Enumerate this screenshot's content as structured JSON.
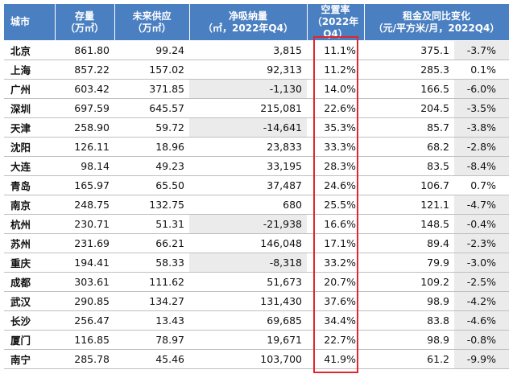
{
  "headers": {
    "city": "城市",
    "stock": [
      "存量",
      "（万㎡）"
    ],
    "supply": [
      "未来供应",
      "（万㎡）"
    ],
    "absorption": [
      "净吸纳量",
      "（㎡，2022年Q4）"
    ],
    "vacancy": [
      "空置率",
      "（2022年Q4）"
    ],
    "rent": [
      "租金及同比变化",
      "（元/平方米/月，2022Q4）"
    ]
  },
  "rows": [
    {
      "city": "北京",
      "stock": "861.80",
      "supply": "99.24",
      "absorption": "3,815",
      "vacancy": "11.1%",
      "rent": "375.1",
      "yoy": "-3.7%"
    },
    {
      "city": "上海",
      "stock": "857.22",
      "supply": "157.02",
      "absorption": "92,313",
      "vacancy": "11.2%",
      "rent": "285.3",
      "yoy": "0.1%"
    },
    {
      "city": "广州",
      "stock": "603.42",
      "supply": "371.85",
      "absorption": "-1,130",
      "vacancy": "14.0%",
      "rent": "166.5",
      "yoy": "-6.0%"
    },
    {
      "city": "深圳",
      "stock": "697.59",
      "supply": "645.57",
      "absorption": "215,081",
      "vacancy": "22.6%",
      "rent": "204.5",
      "yoy": "-3.5%"
    },
    {
      "city": "天津",
      "stock": "258.90",
      "supply": "59.72",
      "absorption": "-14,641",
      "vacancy": "35.3%",
      "rent": "85.7",
      "yoy": "-3.8%"
    },
    {
      "city": "沈阳",
      "stock": "126.11",
      "supply": "18.96",
      "absorption": "23,833",
      "vacancy": "33.3%",
      "rent": "68.2",
      "yoy": "-2.8%"
    },
    {
      "city": "大连",
      "stock": "98.14",
      "supply": "49.23",
      "absorption": "33,195",
      "vacancy": "28.3%",
      "rent": "83.5",
      "yoy": "-8.4%"
    },
    {
      "city": "青岛",
      "stock": "165.97",
      "supply": "65.50",
      "absorption": "37,487",
      "vacancy": "24.6%",
      "rent": "106.7",
      "yoy": "0.7%"
    },
    {
      "city": "南京",
      "stock": "248.75",
      "supply": "132.75",
      "absorption": "680",
      "vacancy": "25.5%",
      "rent": "121.1",
      "yoy": "-4.7%"
    },
    {
      "city": "杭州",
      "stock": "230.71",
      "supply": "51.31",
      "absorption": "-21,938",
      "vacancy": "16.6%",
      "rent": "148.5",
      "yoy": "-0.4%"
    },
    {
      "city": "苏州",
      "stock": "231.69",
      "supply": "66.21",
      "absorption": "146,048",
      "vacancy": "17.1%",
      "rent": "89.4",
      "yoy": "-2.3%"
    },
    {
      "city": "重庆",
      "stock": "194.41",
      "supply": "58.33",
      "absorption": "-8,318",
      "vacancy": "33.2%",
      "rent": "79.9",
      "yoy": "-3.0%"
    },
    {
      "city": "成都",
      "stock": "303.61",
      "supply": "111.62",
      "absorption": "51,673",
      "vacancy": "20.7%",
      "rent": "109.2",
      "yoy": "-2.5%"
    },
    {
      "city": "武汉",
      "stock": "290.85",
      "supply": "134.27",
      "absorption": "131,430",
      "vacancy": "37.6%",
      "rent": "98.9",
      "yoy": "-4.2%"
    },
    {
      "city": "长沙",
      "stock": "256.47",
      "supply": "13.43",
      "absorption": "69,685",
      "vacancy": "34.4%",
      "rent": "83.8",
      "yoy": "-4.6%"
    },
    {
      "city": "厦门",
      "stock": "116.85",
      "supply": "78.97",
      "absorption": "19,671",
      "vacancy": "22.7%",
      "rent": "98.9",
      "yoy": "-0.8%"
    },
    {
      "city": "南宁",
      "stock": "285.78",
      "supply": "45.46",
      "absorption": "103,700",
      "vacancy": "41.9%",
      "rent": "61.2",
      "yoy": "-9.9%"
    }
  ],
  "colors": {
    "header_bg": "#4a7fc1",
    "negative_bg": "#ebebeb",
    "highlight_border": "#e0262b"
  }
}
